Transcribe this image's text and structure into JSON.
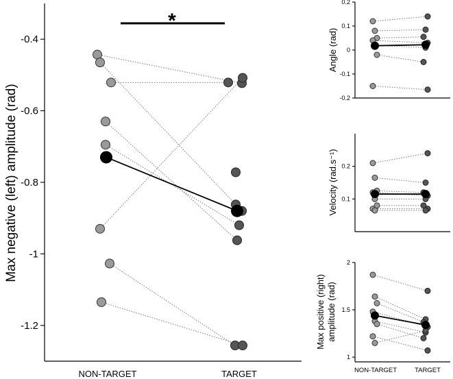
{
  "colors": {
    "non_target_point": "#9a9a9a",
    "target_point": "#555555",
    "mean_point": "#000000",
    "connector": "#777777"
  },
  "chart_data": [
    {
      "id": "main",
      "type": "scatter",
      "subtype": "paired-points",
      "ylabel": "Max negative (left) amplitude (rad)",
      "categories": [
        "NON-TARGET",
        "TARGET"
      ],
      "ylim": [
        -1.3,
        -0.3
      ],
      "yticks": [
        -0.4,
        -0.6,
        -0.8,
        -1,
        -1.2
      ],
      "ytick_labels": [
        "-0.4",
        "-0.6",
        "-0.8",
        "-1",
        "-1.2"
      ],
      "significance": {
        "label": "*",
        "between": [
          "NON-TARGET",
          "TARGET"
        ]
      },
      "pairs": [
        [
          -0.443,
          -0.523
        ],
        [
          -0.465,
          -0.88
        ],
        [
          -0.521,
          -0.521
        ],
        [
          -0.63,
          -0.962
        ],
        [
          -0.695,
          -0.92
        ],
        [
          -0.93,
          -0.508
        ],
        [
          -1.027,
          -1.256
        ],
        [
          -1.135,
          -1.256
        ]
      ],
      "mean": [
        -0.73,
        -0.88
      ],
      "extra_points": {
        "TARGET": [
          -0.772,
          -0.862
        ]
      }
    },
    {
      "id": "angle",
      "type": "scatter",
      "subtype": "paired-points",
      "ylabel": "Angle (rad)",
      "categories": [
        "NON-TARGET",
        "TARGET"
      ],
      "ylim": [
        -0.2,
        0.2
      ],
      "yticks": [
        0.2,
        0.1,
        0,
        -0.1,
        -0.2
      ],
      "ytick_labels": [
        "0.2",
        "0.1",
        "0",
        "-0.1",
        "-0.2"
      ],
      "pairs": [
        [
          0.12,
          0.14
        ],
        [
          0.08,
          0.085
        ],
        [
          0.05,
          0.055
        ],
        [
          0.04,
          0.03
        ],
        [
          0.02,
          0.01
        ],
        [
          -0.02,
          -0.05
        ],
        [
          -0.15,
          -0.165
        ]
      ],
      "mean": [
        0.018,
        0.022
      ]
    },
    {
      "id": "velocity",
      "type": "scatter",
      "subtype": "paired-points",
      "ylabel": "Velocity (rad.s⁻¹)",
      "categories": [
        "NON-TARGET",
        "TARGET"
      ],
      "ylim": [
        0.0,
        0.3
      ],
      "yticks": [
        0.2,
        0.1
      ],
      "ytick_labels": [
        "0.2",
        "0.1"
      ],
      "pairs": [
        [
          0.21,
          0.24
        ],
        [
          0.165,
          0.15
        ],
        [
          0.125,
          0.12
        ],
        [
          0.12,
          0.11
        ],
        [
          0.1,
          0.1
        ],
        [
          0.08,
          0.08
        ],
        [
          0.07,
          0.07
        ],
        [
          0.065,
          0.065
        ]
      ],
      "mean": [
        0.115,
        0.115
      ]
    },
    {
      "id": "maxpos",
      "type": "scatter",
      "subtype": "paired-points",
      "ylabel_lines": [
        "Max positive (right)",
        "amplitude (rad)"
      ],
      "categories": [
        "NON-TARGET",
        "TARGET"
      ],
      "ylim": [
        0.95,
        2.0
      ],
      "yticks": [
        2,
        1.5,
        1
      ],
      "ytick_labels": [
        "2",
        "1.5",
        "1"
      ],
      "pairs": [
        [
          1.87,
          1.7
        ],
        [
          1.64,
          1.4
        ],
        [
          1.57,
          1.37
        ],
        [
          1.48,
          1.32
        ],
        [
          1.38,
          1.26
        ],
        [
          1.35,
          1.2
        ],
        [
          1.22,
          1.07
        ],
        [
          1.15,
          1.28
        ]
      ],
      "mean": [
        1.44,
        1.34
      ]
    }
  ]
}
